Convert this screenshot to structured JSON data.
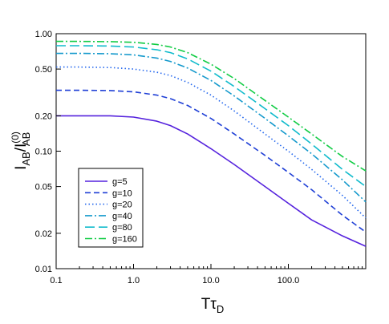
{
  "chart_data": {
    "type": "line",
    "xscale": "log",
    "yscale": "log",
    "xlim": [
      0.1,
      1000
    ],
    "ylim": [
      0.01,
      1.0
    ],
    "grid": false,
    "legend_placement": "bottom-left",
    "xlabel": {
      "main": "T",
      "sym": "τ",
      "sub": "D"
    },
    "ylabel": {
      "base1": "I",
      "sub1": "AB",
      "slash": "/",
      "base2": "I",
      "sub2": "AB",
      "sup2": "(0)"
    },
    "xticks": [
      {
        "value": 0.1,
        "label": "0.1"
      },
      {
        "value": 1,
        "label": "1.0"
      },
      {
        "value": 10,
        "label": "10.0"
      },
      {
        "value": 100,
        "label": "100.0"
      }
    ],
    "yticks": [
      {
        "value": 1.0,
        "label": "1.00"
      },
      {
        "value": 0.5,
        "label": "0.50"
      },
      {
        "value": 0.2,
        "label": "0.20"
      },
      {
        "value": 0.1,
        "label": "0.10"
      },
      {
        "value": 0.05,
        "label": "0.05"
      },
      {
        "value": 0.02,
        "label": "0.02"
      },
      {
        "value": 0.01,
        "label": "0.01"
      }
    ],
    "x": [
      0.1,
      0.2,
      0.5,
      1,
      2,
      3,
      5,
      10,
      20,
      50,
      100,
      200,
      500,
      1000
    ],
    "series": [
      {
        "name": "g=5",
        "color": "#5522dd",
        "dash": "solid",
        "values": [
          0.2,
          0.2,
          0.2,
          0.195,
          0.18,
          0.165,
          0.14,
          0.105,
          0.077,
          0.05,
          0.036,
          0.026,
          0.019,
          0.0155
        ]
      },
      {
        "name": "g=10",
        "color": "#1f3fd6",
        "dash": "dashed",
        "values": [
          0.33,
          0.33,
          0.328,
          0.32,
          0.3,
          0.28,
          0.245,
          0.19,
          0.14,
          0.092,
          0.066,
          0.047,
          0.0285,
          0.0205
        ]
      },
      {
        "name": "g=20",
        "color": "#2266ee",
        "dash": "dotted",
        "values": [
          0.52,
          0.52,
          0.515,
          0.5,
          0.47,
          0.44,
          0.385,
          0.3,
          0.22,
          0.14,
          0.1,
          0.07,
          0.042,
          0.027
        ]
      },
      {
        "name": "g=40",
        "color": "#1499cc",
        "dash": "dashdot",
        "values": [
          0.68,
          0.68,
          0.675,
          0.66,
          0.62,
          0.58,
          0.51,
          0.4,
          0.295,
          0.19,
          0.135,
          0.095,
          0.057,
          0.037
        ]
      },
      {
        "name": "g=80",
        "color": "#11bbcc",
        "dash": "longdash",
        "values": [
          0.79,
          0.79,
          0.785,
          0.77,
          0.73,
          0.69,
          0.61,
          0.48,
          0.355,
          0.23,
          0.165,
          0.115,
          0.07,
          0.05
        ]
      },
      {
        "name": "g=160",
        "color": "#11cc44",
        "dash": "dashdot",
        "values": [
          0.86,
          0.86,
          0.855,
          0.845,
          0.81,
          0.77,
          0.69,
          0.55,
          0.415,
          0.27,
          0.195,
          0.14,
          0.09,
          0.068
        ]
      }
    ]
  }
}
